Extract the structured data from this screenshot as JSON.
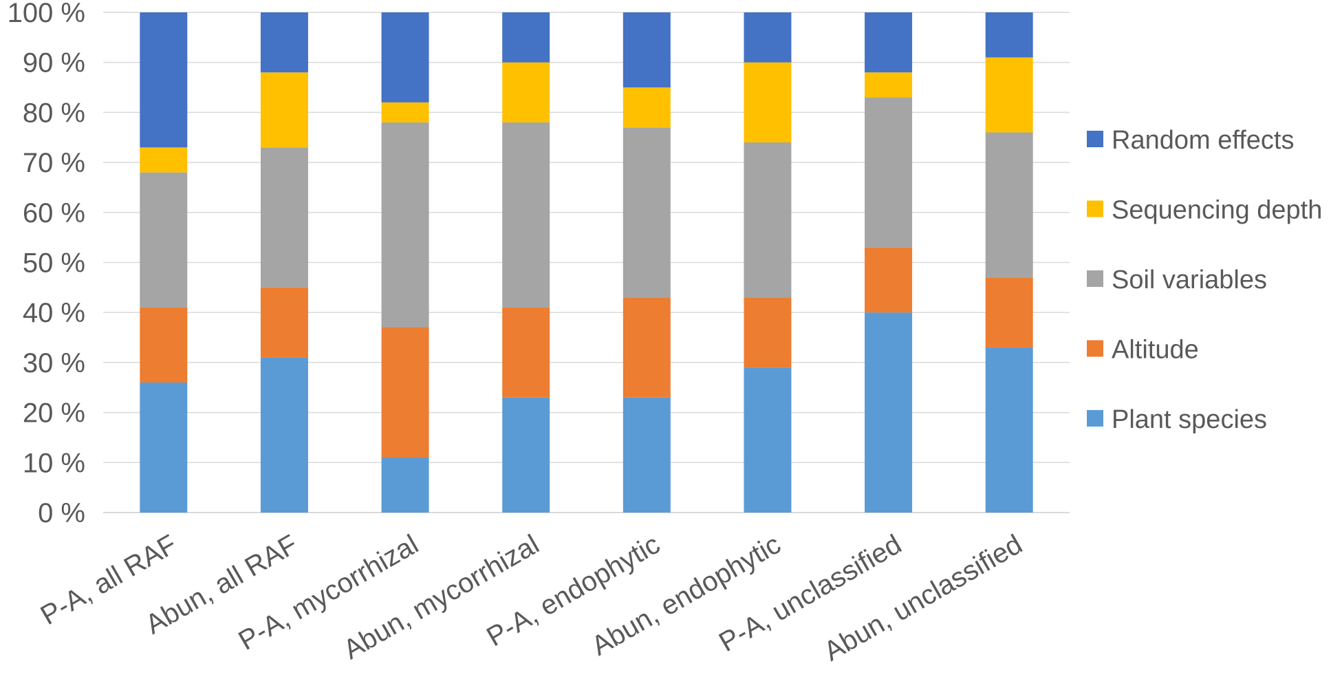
{
  "chart_data": {
    "type": "bar",
    "stacked": true,
    "title": "",
    "xlabel": "",
    "ylabel": "",
    "ylim": [
      0,
      100
    ],
    "y_ticks": [
      "0 %",
      "10 %",
      "20 %",
      "30 %",
      "40 %",
      "50 %",
      "60 %",
      "70 %",
      "80 %",
      "90 %",
      "100 %"
    ],
    "categories": [
      "P-A, all RAF",
      "Abun, all RAF",
      "P-A, mycorrhizal",
      "Abun, mycorrhizal",
      "P-A, endophytic",
      "Abun, endophytic",
      "P-A, unclassified",
      "Abun, unclassified"
    ],
    "series": [
      {
        "name": "Plant species",
        "color": "#5b9bd5",
        "values": [
          26,
          31,
          11,
          23,
          23,
          29,
          40,
          33
        ]
      },
      {
        "name": "Altitude",
        "color": "#ed7d31",
        "values": [
          15,
          14,
          26,
          18,
          20,
          14,
          13,
          14
        ]
      },
      {
        "name": "Soil variables",
        "color": "#a5a5a5",
        "values": [
          27,
          28,
          41,
          37,
          34,
          31,
          30,
          29
        ]
      },
      {
        "name": "Sequencing depth",
        "color": "#ffc000",
        "values": [
          5,
          15,
          4,
          12,
          8,
          16,
          5,
          15
        ]
      },
      {
        "name": "Random effects",
        "color": "#4472c4",
        "values": [
          27,
          12,
          18,
          10,
          15,
          10,
          12,
          9
        ]
      }
    ],
    "legend": {
      "placement": "right",
      "order": [
        "Random effects",
        "Sequencing depth",
        "Soil variables",
        "Altitude",
        "Plant species"
      ]
    },
    "grid": true
  }
}
